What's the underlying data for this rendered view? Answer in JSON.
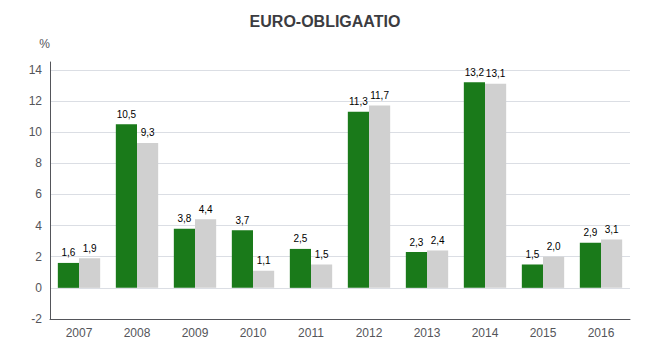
{
  "chart_data": {
    "type": "bar",
    "title": "EURO-OBLIGAATIO",
    "ylabel": "%",
    "categories": [
      "2007",
      "2008",
      "2009",
      "2010",
      "2011",
      "2012",
      "2013",
      "2014",
      "2015",
      "2016"
    ],
    "series": [
      {
        "color": "#1a7a1a",
        "values": [
          1.6,
          10.5,
          3.8,
          3.7,
          2.5,
          11.3,
          2.3,
          13.2,
          1.5,
          2.9
        ],
        "value_labels": [
          "1,6",
          "10,5",
          "3,8",
          "3,7",
          "2,5",
          "11,3",
          "2,3",
          "13,2",
          "1,5",
          "2,9"
        ]
      },
      {
        "color": "#d0d0d0",
        "values": [
          1.9,
          9.3,
          4.4,
          1.1,
          1.5,
          11.7,
          2.4,
          13.1,
          2.0,
          3.1
        ],
        "value_labels": [
          "1,9",
          "9,3",
          "4,4",
          "1,1",
          "1,5",
          "11,7",
          "2,4",
          "13,1",
          "2,0",
          "3,1"
        ]
      }
    ],
    "ylim": [
      -2,
      14.5
    ],
    "yticks": [
      -2,
      0,
      2,
      4,
      6,
      8,
      10,
      12,
      14
    ],
    "grid": true,
    "data_labels": true
  }
}
